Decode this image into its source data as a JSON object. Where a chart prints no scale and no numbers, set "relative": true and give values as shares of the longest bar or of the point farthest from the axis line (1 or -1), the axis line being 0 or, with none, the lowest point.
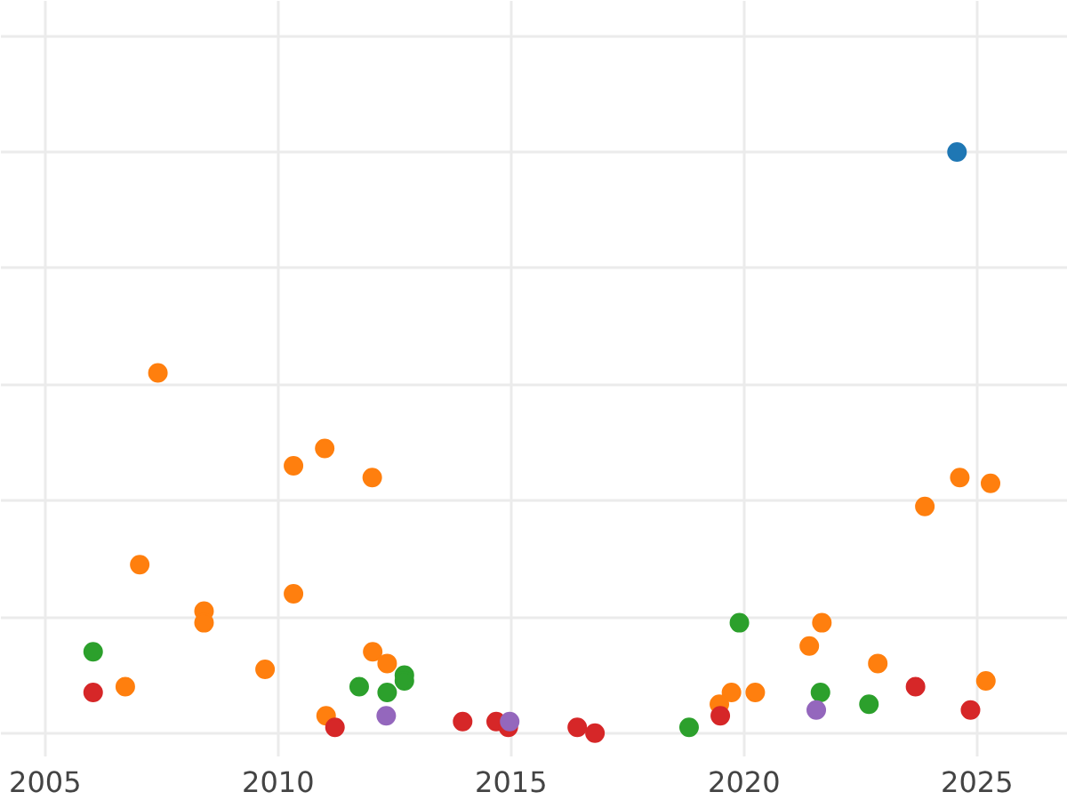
{
  "chart_data": {
    "type": "scatter",
    "relative": true,
    "grid": true,
    "marker": "circle",
    "xlim": [
      2004.05,
      2026.95
    ],
    "xticks": [
      2005,
      2010,
      2015,
      2020,
      2025
    ],
    "series": [
      {
        "color": "#ff7f0e",
        "x": [
          2007.42,
          2007.03,
          2008.41,
          2008.41,
          2006.72,
          2009.72,
          2010.33,
          2011.0,
          2012.02,
          2010.33,
          2012.03,
          2012.34,
          2011.03,
          2024.63,
          2025.29,
          2023.88,
          2021.67,
          2021.4,
          2022.87,
          2025.19,
          2019.73,
          2020.24,
          2019.47
        ],
        "values": [
          0.62,
          0.29,
          0.21,
          0.19,
          0.08,
          0.11,
          0.46,
          0.49,
          0.44,
          0.24,
          0.14,
          0.12,
          0.03,
          0.44,
          0.43,
          0.39,
          0.19,
          0.15,
          0.12,
          0.09,
          0.07,
          0.07,
          0.05
        ]
      },
      {
        "color": "#2ca02c",
        "x": [
          2006.03,
          2011.74,
          2012.34,
          2012.71,
          2012.71,
          2019.9,
          2021.64,
          2022.68,
          2018.82
        ],
        "values": [
          0.14,
          0.08,
          0.07,
          0.1,
          0.09,
          0.19,
          0.07,
          0.05,
          0.01
        ]
      },
      {
        "color": "#d62728",
        "x": [
          2006.03,
          2011.22,
          2013.96,
          2014.68,
          2014.94,
          2016.42,
          2016.8,
          2019.49,
          2023.68,
          2024.86
        ],
        "values": [
          0.07,
          0.01,
          0.02,
          0.02,
          0.01,
          0.01,
          0.0,
          0.03,
          0.08,
          0.04
        ]
      },
      {
        "color": "#9467bd",
        "x": [
          2012.32,
          2014.97,
          2021.55
        ],
        "values": [
          0.03,
          0.02,
          0.04
        ]
      },
      {
        "color": "#1f77b4",
        "x": [
          2024.57
        ],
        "values": [
          1.0
        ]
      }
    ]
  }
}
